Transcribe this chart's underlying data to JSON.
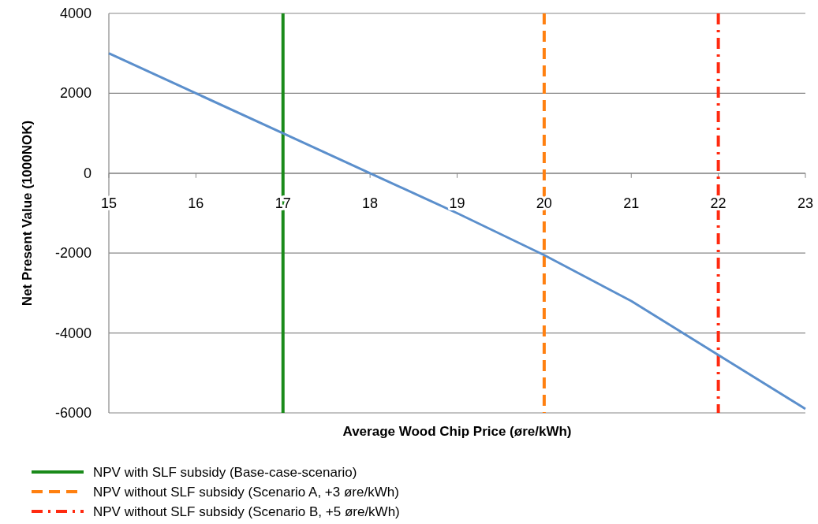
{
  "chart_data": {
    "type": "line",
    "xlabel": "Average Wood Chip Price (øre/kWh)",
    "ylabel": "Net Present Value (1000NOK)",
    "x": [
      15,
      16,
      17,
      18,
      19,
      20,
      21,
      22,
      23
    ],
    "series": [
      {
        "color": "#5b8fcc",
        "values": [
          3000,
          2000,
          1000,
          0,
          -1000,
          -2050,
          -3200,
          -4550,
          -5900
        ]
      }
    ],
    "xlim": [
      15,
      23
    ],
    "xticks": [
      15,
      16,
      17,
      18,
      19,
      20,
      21,
      22,
      23
    ],
    "ylim": [
      -6000,
      4000
    ],
    "yticks": [
      -6000,
      -4000,
      -2000,
      0,
      2000,
      4000
    ],
    "grid": "y",
    "legend": "bottom",
    "marker": "none",
    "line_style": "solid",
    "ref_lines": [
      {
        "axis": "x",
        "value": 17,
        "label": "NPV with SLF subsidy (Base-case-scenario)",
        "color": "#1a8a1a",
        "line_style": "solid"
      },
      {
        "axis": "x",
        "value": 20,
        "label": "NPV without SLF subsidy (Scenario A, +3 øre/kWh)",
        "color": "#ff8010",
        "line_style": "dashed"
      },
      {
        "axis": "x",
        "value": 22,
        "label": "NPV without SLF subsidy (Scenario B, +5 øre/kWh)",
        "color": "#ff2a10",
        "line_style": "dashdot"
      }
    ]
  }
}
